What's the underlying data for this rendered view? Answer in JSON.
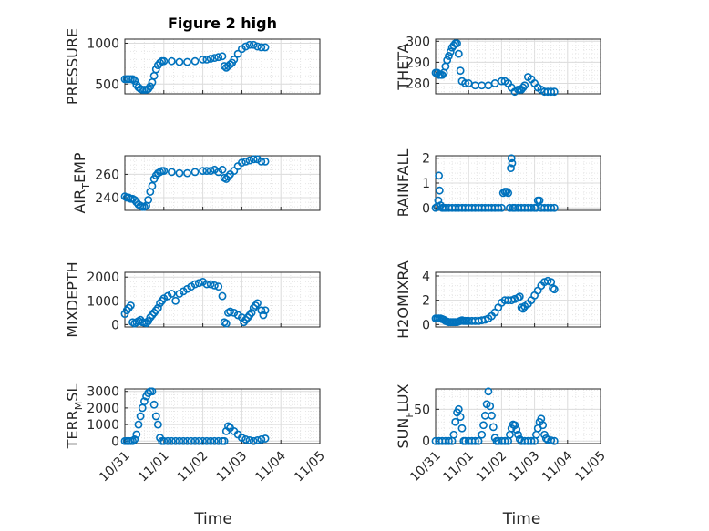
{
  "figure": {
    "marker_color": "#0072BD"
  },
  "chart_data": [
    {
      "type": "scatter",
      "title": "Figure 2 high",
      "ylabel": "PRESSURE",
      "ylim": [
        380,
        1050
      ],
      "yticks": [
        500,
        1000
      ],
      "tick_labels": [
        "500",
        "1000"
      ],
      "grid": true,
      "x_tick_labels": false,
      "x": [
        0,
        0.05,
        0.1,
        0.15,
        0.2,
        0.25,
        0.3,
        0.35,
        0.4,
        0.45,
        0.5,
        0.55,
        0.6,
        0.65,
        0.7,
        0.75,
        0.8,
        0.85,
        0.9,
        0.95,
        1,
        1.2,
        1.4,
        1.6,
        1.8,
        2,
        2.1,
        2.2,
        2.3,
        2.4,
        2.5,
        2.55,
        2.6,
        2.65,
        2.7,
        2.75,
        2.8,
        2.9,
        3,
        3.1,
        3.2,
        3.3,
        3.4,
        3.5,
        3.6
      ],
      "y": [
        560,
        560,
        560,
        560,
        560,
        540,
        490,
        460,
        440,
        430,
        430,
        430,
        440,
        470,
        520,
        600,
        680,
        730,
        760,
        780,
        780,
        780,
        770,
        770,
        780,
        800,
        800,
        810,
        820,
        830,
        840,
        720,
        700,
        720,
        740,
        760,
        800,
        870,
        930,
        960,
        980,
        980,
        960,
        950,
        950
      ]
    },
    {
      "type": "scatter",
      "ylabel": "THETA",
      "ylim": [
        275,
        301
      ],
      "yticks": [
        280,
        290,
        300
      ],
      "tick_labels": [
        "280",
        "290",
        "300"
      ],
      "grid": true,
      "x_tick_labels": false,
      "x": [
        0,
        0.05,
        0.1,
        0.15,
        0.2,
        0.25,
        0.3,
        0.35,
        0.4,
        0.45,
        0.5,
        0.55,
        0.6,
        0.65,
        0.7,
        0.75,
        0.8,
        0.9,
        1,
        1.2,
        1.4,
        1.6,
        1.8,
        2,
        2.1,
        2.2,
        2.3,
        2.4,
        2.5,
        2.55,
        2.6,
        2.65,
        2.7,
        2.8,
        2.9,
        3,
        3.1,
        3.2,
        3.3,
        3.4,
        3.5,
        3.6
      ],
      "y": [
        285,
        285,
        284,
        284,
        284,
        285,
        288,
        291,
        293,
        295,
        297,
        298,
        299,
        299,
        294,
        286,
        281,
        280,
        280,
        279,
        279,
        279,
        280,
        281,
        281,
        280,
        278,
        276,
        277,
        277,
        277,
        278,
        279,
        283,
        282,
        280,
        278,
        277,
        276,
        276,
        276,
        276
      ]
    },
    {
      "type": "scatter",
      "ylabel": "AIR_TEMP",
      "ylabel_sub": "T",
      "ylabel_parts": [
        "AIR",
        "T",
        "EMP"
      ],
      "ylim": [
        229,
        276
      ],
      "yticks": [
        240,
        260
      ],
      "tick_labels": [
        "240",
        "260"
      ],
      "grid": true,
      "x_tick_labels": false,
      "x": [
        0,
        0.05,
        0.1,
        0.15,
        0.2,
        0.25,
        0.3,
        0.35,
        0.4,
        0.45,
        0.5,
        0.55,
        0.6,
        0.65,
        0.7,
        0.75,
        0.8,
        0.85,
        0.9,
        0.95,
        1,
        1.2,
        1.4,
        1.6,
        1.8,
        2,
        2.1,
        2.2,
        2.3,
        2.4,
        2.5,
        2.55,
        2.6,
        2.65,
        2.7,
        2.8,
        2.9,
        3,
        3.1,
        3.2,
        3.3,
        3.4,
        3.5,
        3.6
      ],
      "y": [
        241,
        240,
        240,
        239,
        239,
        238,
        236,
        234,
        233,
        232,
        232,
        233,
        238,
        245,
        250,
        256,
        259,
        261,
        262,
        263,
        263,
        262,
        261,
        261,
        262,
        263,
        263,
        263,
        264,
        262,
        264,
        257,
        256,
        258,
        260,
        263,
        267,
        270,
        271,
        272,
        273,
        273,
        271,
        271
      ]
    },
    {
      "type": "scatter",
      "ylabel": "RAINFALL",
      "ylim": [
        -0.1,
        2.1
      ],
      "yticks": [
        0,
        1,
        2
      ],
      "tick_labels": [
        "0",
        "1",
        "2"
      ],
      "grid": true,
      "x_tick_labels": false,
      "x": [
        0,
        0.05,
        0.08,
        0.1,
        0.12,
        0.15,
        0.2,
        0.25,
        0.3,
        0.4,
        0.5,
        0.6,
        0.7,
        0.8,
        0.9,
        1,
        1.1,
        1.2,
        1.3,
        1.4,
        1.5,
        1.6,
        1.7,
        1.8,
        1.9,
        2,
        2.05,
        2.1,
        2.15,
        2.2,
        2.25,
        2.28,
        2.3,
        2.32,
        2.35,
        2.4,
        2.5,
        2.6,
        2.7,
        2.8,
        2.9,
        3,
        3.05,
        3.1,
        3.15,
        3.2,
        3.3,
        3.4,
        3.5,
        3.6
      ],
      "y": [
        0,
        0.05,
        0.3,
        1.3,
        0.7,
        0.1,
        0,
        0,
        0,
        0,
        0,
        0,
        0,
        0,
        0,
        0,
        0,
        0,
        0,
        0,
        0,
        0,
        0,
        0,
        0,
        0,
        0.6,
        0.65,
        0.65,
        0.6,
        0,
        1.6,
        2,
        1.8,
        0,
        0,
        0,
        0,
        0,
        0,
        0,
        0,
        0,
        0.3,
        0.3,
        0,
        0,
        0,
        0,
        0
      ]
    },
    {
      "type": "scatter",
      "ylabel": "MIXDEPTH",
      "ylim": [
        -100,
        2200
      ],
      "yticks": [
        0,
        1000,
        2000
      ],
      "tick_labels": [
        "0",
        "1000",
        "2000"
      ],
      "grid": true,
      "x_tick_labels": false,
      "x": [
        0,
        0.05,
        0.1,
        0.15,
        0.2,
        0.25,
        0.3,
        0.35,
        0.4,
        0.45,
        0.5,
        0.55,
        0.6,
        0.65,
        0.7,
        0.75,
        0.8,
        0.85,
        0.9,
        0.95,
        1,
        1.1,
        1.2,
        1.3,
        1.4,
        1.5,
        1.6,
        1.7,
        1.8,
        1.9,
        2,
        2.1,
        2.2,
        2.3,
        2.4,
        2.5,
        2.55,
        2.6,
        2.65,
        2.7,
        2.8,
        2.9,
        3,
        3.05,
        3.1,
        3.15,
        3.2,
        3.25,
        3.3,
        3.35,
        3.4,
        3.5,
        3.55,
        3.6
      ],
      "y": [
        450,
        600,
        700,
        800,
        100,
        50,
        100,
        150,
        200,
        100,
        80,
        60,
        150,
        300,
        400,
        500,
        600,
        700,
        900,
        1000,
        1100,
        1200,
        1300,
        1000,
        1300,
        1400,
        1500,
        1600,
        1700,
        1750,
        1800,
        1700,
        1700,
        1650,
        1600,
        1200,
        100,
        50,
        500,
        550,
        500,
        400,
        300,
        100,
        200,
        300,
        400,
        500,
        700,
        800,
        900,
        600,
        400,
        600
      ]
    },
    {
      "type": "scatter",
      "ylabel": "H2OMIXRA",
      "ylim": [
        -0.2,
        4.3
      ],
      "yticks": [
        0,
        2,
        4
      ],
      "tick_labels": [
        "0",
        "2",
        "4"
      ],
      "grid": true,
      "x_tick_labels": false,
      "x": [
        0,
        0.05,
        0.1,
        0.15,
        0.2,
        0.25,
        0.3,
        0.35,
        0.4,
        0.45,
        0.5,
        0.55,
        0.6,
        0.65,
        0.7,
        0.75,
        0.8,
        0.85,
        0.9,
        0.95,
        1,
        1.1,
        1.2,
        1.3,
        1.4,
        1.5,
        1.6,
        1.7,
        1.8,
        1.9,
        2,
        2.1,
        2.2,
        2.3,
        2.4,
        2.5,
        2.55,
        2.6,
        2.65,
        2.7,
        2.8,
        2.9,
        3,
        3.1,
        3.2,
        3.3,
        3.4,
        3.5,
        3.55,
        3.6
      ],
      "y": [
        0.5,
        0.5,
        0.5,
        0.5,
        0.45,
        0.4,
        0.3,
        0.25,
        0.2,
        0.2,
        0.2,
        0.2,
        0.2,
        0.2,
        0.25,
        0.3,
        0.35,
        0.3,
        0.3,
        0.3,
        0.3,
        0.3,
        0.3,
        0.3,
        0.35,
        0.4,
        0.5,
        0.7,
        1.0,
        1.4,
        1.8,
        2.0,
        2.0,
        2.0,
        2.1,
        2.2,
        2.3,
        1.4,
        1.3,
        1.5,
        1.7,
        2.0,
        2.4,
        2.8,
        3.2,
        3.5,
        3.6,
        3.5,
        3.0,
        2.9
      ]
    },
    {
      "type": "scatter",
      "ylabel": "TERR_MSL",
      "ylabel_parts": [
        "TERR",
        "M",
        "SL"
      ],
      "ylim": [
        -150,
        3150
      ],
      "yticks": [
        0,
        1000,
        2000,
        3000
      ],
      "tick_labels": [
        "0",
        "1000",
        "2000",
        "3000"
      ],
      "grid": true,
      "x_tick_labels": true,
      "x_ticks": [
        0,
        1,
        2,
        3,
        4,
        5
      ],
      "x_labels": [
        "10/31",
        "11/01",
        "11/02",
        "11/03",
        "11/04",
        "11/05"
      ],
      "xlabel": "Time",
      "xlim": [
        0,
        5
      ],
      "x": [
        0,
        0.05,
        0.1,
        0.15,
        0.2,
        0.25,
        0.3,
        0.35,
        0.4,
        0.45,
        0.5,
        0.55,
        0.6,
        0.65,
        0.7,
        0.75,
        0.8,
        0.85,
        0.9,
        0.95,
        1,
        1.1,
        1.2,
        1.3,
        1.4,
        1.5,
        1.6,
        1.7,
        1.8,
        1.9,
        2,
        2.1,
        2.2,
        2.3,
        2.4,
        2.5,
        2.55,
        2.6,
        2.65,
        2.7,
        2.8,
        2.9,
        3,
        3.1,
        3.2,
        3.3,
        3.4,
        3.5,
        3.6
      ],
      "y": [
        0,
        0,
        0,
        0,
        0,
        100,
        400,
        1000,
        1500,
        2000,
        2400,
        2700,
        2900,
        3000,
        3000,
        2200,
        1500,
        1000,
        200,
        0,
        0,
        0,
        0,
        0,
        0,
        0,
        0,
        0,
        0,
        0,
        0,
        0,
        0,
        0,
        0,
        0,
        0,
        600,
        900,
        800,
        600,
        400,
        200,
        100,
        50,
        0,
        50,
        100,
        150
      ]
    },
    {
      "type": "scatter",
      "ylabel": "SUN_FLUX",
      "ylabel_parts": [
        "SUN",
        "F",
        "LUX"
      ],
      "ylim": [
        -4,
        82
      ],
      "yticks": [
        0,
        50
      ],
      "tick_labels": [
        "0",
        "50"
      ],
      "grid": true,
      "x_tick_labels": true,
      "x_ticks": [
        0,
        1,
        2,
        3,
        4,
        5
      ],
      "x_labels": [
        "10/31",
        "11/01",
        "11/02",
        "11/03",
        "11/04",
        "11/05"
      ],
      "xlabel": "Time",
      "xlim": [
        0,
        5
      ],
      "x": [
        0,
        0.1,
        0.2,
        0.3,
        0.4,
        0.5,
        0.55,
        0.6,
        0.65,
        0.7,
        0.75,
        0.8,
        0.85,
        0.9,
        1,
        1.1,
        1.2,
        1.3,
        1.4,
        1.45,
        1.5,
        1.55,
        1.6,
        1.65,
        1.7,
        1.75,
        1.8,
        1.85,
        1.9,
        2,
        2.1,
        2.2,
        2.25,
        2.3,
        2.35,
        2.4,
        2.45,
        2.5,
        2.55,
        2.6,
        2.7,
        2.8,
        2.9,
        3,
        3.05,
        3.1,
        3.15,
        3.2,
        3.25,
        3.3,
        3.35,
        3.4,
        3.5,
        3.6
      ],
      "y": [
        0,
        0,
        0,
        0,
        0,
        0,
        10,
        30,
        45,
        50,
        38,
        20,
        0,
        0,
        0,
        0,
        0,
        0,
        10,
        25,
        40,
        58,
        78,
        55,
        40,
        22,
        5,
        0,
        0,
        0,
        0,
        0,
        10,
        20,
        26,
        25,
        18,
        10,
        3,
        0,
        0,
        0,
        0,
        0,
        10,
        20,
        30,
        35,
        25,
        10,
        4,
        2,
        1,
        0
      ]
    }
  ]
}
